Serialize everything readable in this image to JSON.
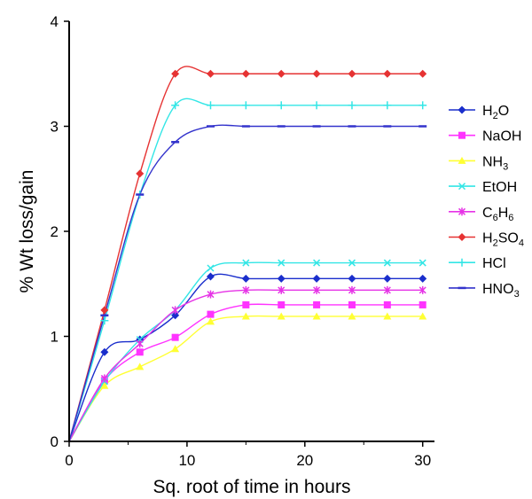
{
  "chart_data": {
    "type": "line",
    "title": "",
    "xlabel": "Sq. root of time in hours",
    "ylabel": "% Wt loss/gain",
    "xlim": [
      0,
      31
    ],
    "ylim": [
      0,
      4
    ],
    "xticks": [
      0,
      10,
      20,
      30
    ],
    "yticks": [
      0,
      1,
      2,
      3,
      4
    ],
    "x_tick_labels": [
      "0",
      "10",
      "20",
      "30"
    ],
    "y_tick_labels": [
      "0",
      "1",
      "2",
      "3",
      "4"
    ],
    "grid": false,
    "legend_position": "right",
    "x": [
      0,
      3,
      6,
      9,
      12,
      15,
      18,
      21,
      24,
      27,
      30
    ],
    "series": [
      {
        "name": "H2O",
        "label_parts": [
          [
            "H",
            ""
          ],
          [
            "2",
            "sub"
          ],
          [
            "O",
            ""
          ]
        ],
        "color": "#1a2ecc",
        "marker": "diamond",
        "values": [
          0,
          0.85,
          0.97,
          1.2,
          1.57,
          1.55,
          1.55,
          1.55,
          1.55,
          1.55,
          1.55
        ]
      },
      {
        "name": "NaOH",
        "label_parts": [
          [
            "NaOH",
            ""
          ]
        ],
        "color": "#ff33ff",
        "marker": "square",
        "values": [
          0,
          0.58,
          0.85,
          0.99,
          1.21,
          1.3,
          1.3,
          1.3,
          1.3,
          1.3,
          1.3
        ]
      },
      {
        "name": "NH3",
        "label_parts": [
          [
            "NH",
            ""
          ],
          [
            "3",
            "sub"
          ]
        ],
        "color": "#ffff33",
        "marker": "triangle",
        "values": [
          0,
          0.53,
          0.71,
          0.88,
          1.14,
          1.19,
          1.19,
          1.19,
          1.19,
          1.19,
          1.19
        ]
      },
      {
        "name": "EtOH",
        "label_parts": [
          [
            "EtOH",
            ""
          ]
        ],
        "color": "#33e6e6",
        "marker": "x",
        "values": [
          0,
          0.57,
          0.97,
          1.25,
          1.65,
          1.7,
          1.7,
          1.7,
          1.7,
          1.7,
          1.7
        ]
      },
      {
        "name": "C6H6",
        "label_parts": [
          [
            "C",
            ""
          ],
          [
            "6",
            "sub"
          ],
          [
            "H",
            ""
          ],
          [
            "6",
            "sub"
          ]
        ],
        "color": "#e633e6",
        "marker": "star",
        "values": [
          0,
          0.6,
          0.93,
          1.25,
          1.4,
          1.44,
          1.44,
          1.44,
          1.44,
          1.44,
          1.44
        ]
      },
      {
        "name": "H2SO4",
        "label_parts": [
          [
            "H",
            ""
          ],
          [
            "2",
            "sub"
          ],
          [
            "SO",
            ""
          ],
          [
            "4",
            "sub"
          ]
        ],
        "color": "#e63333",
        "marker": "diamond",
        "values": [
          0,
          1.25,
          2.55,
          3.5,
          3.5,
          3.5,
          3.5,
          3.5,
          3.5,
          3.5,
          3.5
        ]
      },
      {
        "name": "HCl",
        "label_parts": [
          [
            "HCl",
            ""
          ]
        ],
        "color": "#33e6e6",
        "marker": "plus",
        "values": [
          0,
          1.15,
          2.35,
          3.2,
          3.2,
          3.2,
          3.2,
          3.2,
          3.2,
          3.2,
          3.2
        ]
      },
      {
        "name": "HNO3",
        "label_parts": [
          [
            "HNO",
            ""
          ],
          [
            "3",
            "sub"
          ]
        ],
        "color": "#3333cc",
        "marker": "dash",
        "values": [
          0,
          1.2,
          2.35,
          2.85,
          3.0,
          3.0,
          3.0,
          3.0,
          3.0,
          3.0,
          3.0
        ]
      }
    ]
  }
}
